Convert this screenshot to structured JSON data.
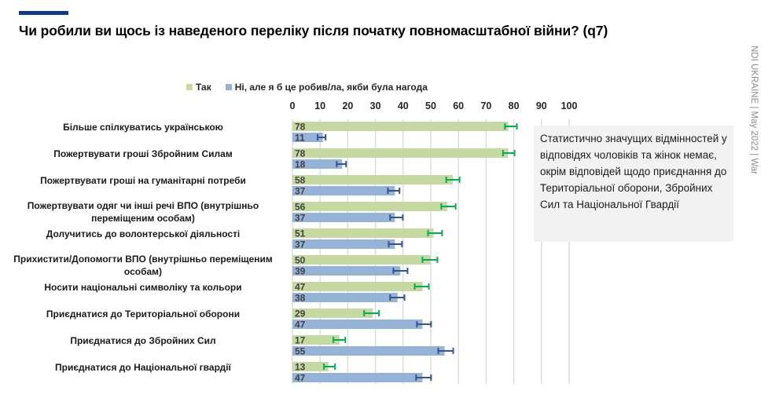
{
  "header": {
    "title": "Чи робили ви щось із наведеного переліку після початку повномасштабної війни? (q7)",
    "side_note": "NDI UKRAINE | May 2022 | War",
    "accent_color": "#0d3b8c"
  },
  "note_box": {
    "text": "Статистично значущих відмінностей у відповідях чоловіків та жінок немає, окрім відповідей щодо приєднання до Територіальної оборони, Збройних Сил та Національної Гвардії"
  },
  "chart_data": {
    "type": "bar",
    "orientation": "horizontal",
    "title": "Чи робили ви щось із наведеного переліку після початку повномасштабної війни? (q7)",
    "xlabel": "",
    "ylabel": "",
    "xlim": [
      0,
      100
    ],
    "x_ticks": [
      "0",
      "10",
      "20",
      "30",
      "40",
      "50",
      "60",
      "70",
      "80",
      "90",
      "100"
    ],
    "grid": true,
    "legend_position": "top-left",
    "categories": [
      "Більше спілкуватись українською",
      "Пожертвувати гроші Збройним Силам",
      "Пожертвувати гроші на гуманітарні потреби",
      "Пожертвувати одяг чи інші речі ВПО (внутрішньо переміщеним особам)",
      "Долучитись до волонтерської діяльності",
      "Прихистити/Допомогти ВПО (внутрішньо переміщеним особам)",
      "Носити національні символіку та кольори",
      "Приєднатися до Територіальної оборони",
      "Приєднатися до Збройних Сил",
      "Приєднатися до Національної гвардії"
    ],
    "category_lines": [
      [
        "Більше спілкуватись українською"
      ],
      [
        "Пожертвувати гроші Збройним Силам"
      ],
      [
        "Пожертвувати гроші на гуманітарні потреби"
      ],
      [
        "Пожертвувати одяг чи інші речі ВПО (внутрішньо",
        "переміщеним особам)"
      ],
      [
        "Долучитись до волонтерської діяльності"
      ],
      [
        "Прихистити/Допомогти ВПО (внутрішньо переміщеним",
        "особам)"
      ],
      [
        "Носити національні символіку та кольори"
      ],
      [
        "Приєднатися до Територіальної оборони"
      ],
      [
        "Приєднатися до Збройних Сил"
      ],
      [
        "Приєднатися до Національної гвардії"
      ]
    ],
    "series": [
      {
        "name": "Так",
        "color": "#c5d9a0",
        "error_color": "#00b050",
        "values": [
          78,
          78,
          58,
          56,
          51,
          50,
          47,
          29,
          17,
          13
        ],
        "error_low": [
          76.8,
          76.1,
          55.6,
          53.8,
          49.0,
          47.0,
          44.2,
          25.9,
          14.8,
          11.4
        ],
        "error_high": [
          81.1,
          80.3,
          60.4,
          59.0,
          54.1,
          52.4,
          49.3,
          31.3,
          19.1,
          15.4
        ]
      },
      {
        "name": "Ні, але я б це робив/ла, якби була нагода",
        "color": "#95b3d7",
        "error_color": "#2f5597",
        "values": [
          11,
          18,
          37,
          37,
          37,
          39,
          38,
          47,
          55,
          47
        ],
        "error_low": [
          9.1,
          16.0,
          34.5,
          35.3,
          34.8,
          36.5,
          35.3,
          45.0,
          52.7,
          44.7
        ],
        "error_high": [
          12.0,
          19.4,
          38.7,
          39.9,
          39.6,
          41.6,
          40.5,
          50.1,
          58.1,
          50.1
        ]
      }
    ]
  }
}
